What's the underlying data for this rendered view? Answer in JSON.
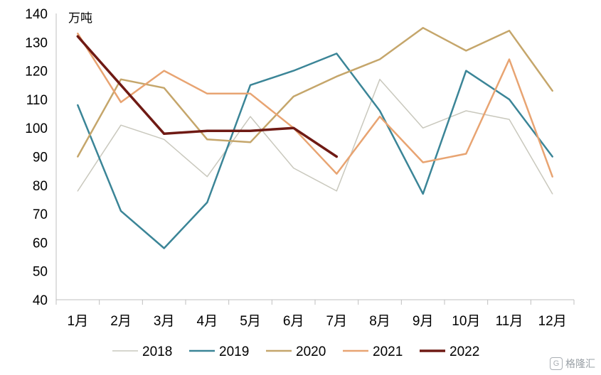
{
  "chart_data": {
    "type": "line",
    "unit_label": "万吨",
    "categories": [
      "1月",
      "2月",
      "3月",
      "4月",
      "5月",
      "6月",
      "7月",
      "8月",
      "9月",
      "10月",
      "11月",
      "12月"
    ],
    "ylim": [
      40,
      140
    ],
    "yticks": [
      40,
      50,
      60,
      70,
      80,
      90,
      100,
      110,
      120,
      130,
      140
    ],
    "grid": false,
    "legend_position": "bottom",
    "series": [
      {
        "name": "2018",
        "color": "#c9c8bd",
        "width": 1.5,
        "values": [
          78,
          101,
          96,
          83,
          104,
          86,
          78,
          117,
          100,
          106,
          103,
          77
        ]
      },
      {
        "name": "2019",
        "color": "#3b8597",
        "width": 2.5,
        "values": [
          108,
          71,
          58,
          74,
          115,
          120,
          126,
          106,
          77,
          120,
          110,
          90
        ]
      },
      {
        "name": "2020",
        "color": "#c5a66b",
        "width": 2.5,
        "values": [
          90,
          117,
          114,
          96,
          95,
          111,
          118,
          124,
          135,
          127,
          134,
          113
        ]
      },
      {
        "name": "2021",
        "color": "#e8a472",
        "width": 2.5,
        "values": [
          133,
          109,
          120,
          112,
          112,
          100,
          84,
          104,
          88,
          91,
          124,
          83
        ]
      },
      {
        "name": "2022",
        "color": "#6f1a14",
        "width": 3.5,
        "values": [
          132,
          115,
          98,
          99,
          99,
          100,
          90,
          null,
          null,
          null,
          null,
          null
        ]
      }
    ]
  },
  "watermark": {
    "text": "格隆汇",
    "badge": "G"
  }
}
